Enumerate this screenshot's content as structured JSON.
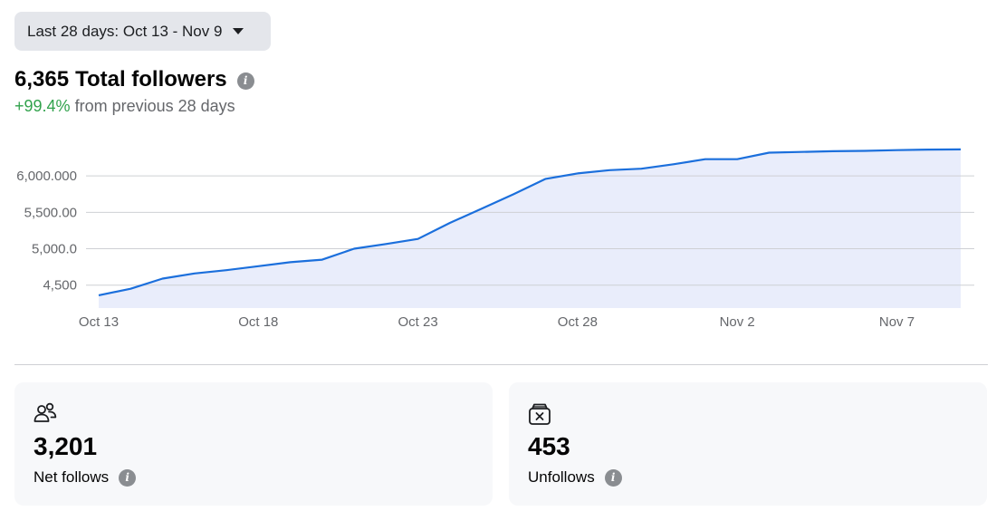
{
  "date_range": {
    "label": "Last 28 days: Oct 13 - Nov 9"
  },
  "summary": {
    "total": "6,365",
    "total_label": "Total followers",
    "change_pct": "+99.4%",
    "change_text": "from previous 28 days",
    "info_glyph": "i"
  },
  "chart_data": {
    "type": "area",
    "x_tick_labels": [
      "Oct 13",
      "Oct 18",
      "Oct 23",
      "Oct 28",
      "Nov 2",
      "Nov 7"
    ],
    "y_tick_labels": [
      "6,000.000",
      "5,500.00",
      "5,000.0",
      "4,500"
    ],
    "y_ticks": [
      6000,
      5500,
      5000,
      4500
    ],
    "ylim": [
      4185,
      6550
    ],
    "grid": true,
    "line_color": "#1b6fdc",
    "fill_color": "#e9edfb",
    "series": [
      {
        "x": [
          "Oct 13",
          "Oct 14",
          "Oct 15",
          "Oct 16",
          "Oct 17",
          "Oct 18",
          "Oct 19",
          "Oct 20",
          "Oct 21",
          "Oct 22",
          "Oct 23",
          "Oct 24",
          "Oct 25",
          "Oct 26",
          "Oct 27",
          "Oct 28",
          "Oct 29",
          "Oct 30",
          "Oct 31",
          "Nov 1",
          "Nov 2",
          "Nov 3",
          "Nov 4",
          "Nov 5",
          "Nov 6",
          "Nov 7",
          "Nov 8",
          "Nov 9"
        ],
        "values": [
          4360,
          4450,
          4590,
          4660,
          4705,
          4760,
          4815,
          4850,
          5000,
          5065,
          5135,
          5355,
          5550,
          5750,
          5960,
          6035,
          6080,
          6100,
          6160,
          6230,
          6230,
          6320,
          6330,
          6340,
          6345,
          6355,
          6362,
          6365
        ]
      }
    ]
  },
  "cards": [
    {
      "icon": "people-icon",
      "value": "3,201",
      "label": "Net follows"
    },
    {
      "icon": "unfollow-box-icon",
      "value": "453",
      "label": "Unfollows"
    }
  ]
}
